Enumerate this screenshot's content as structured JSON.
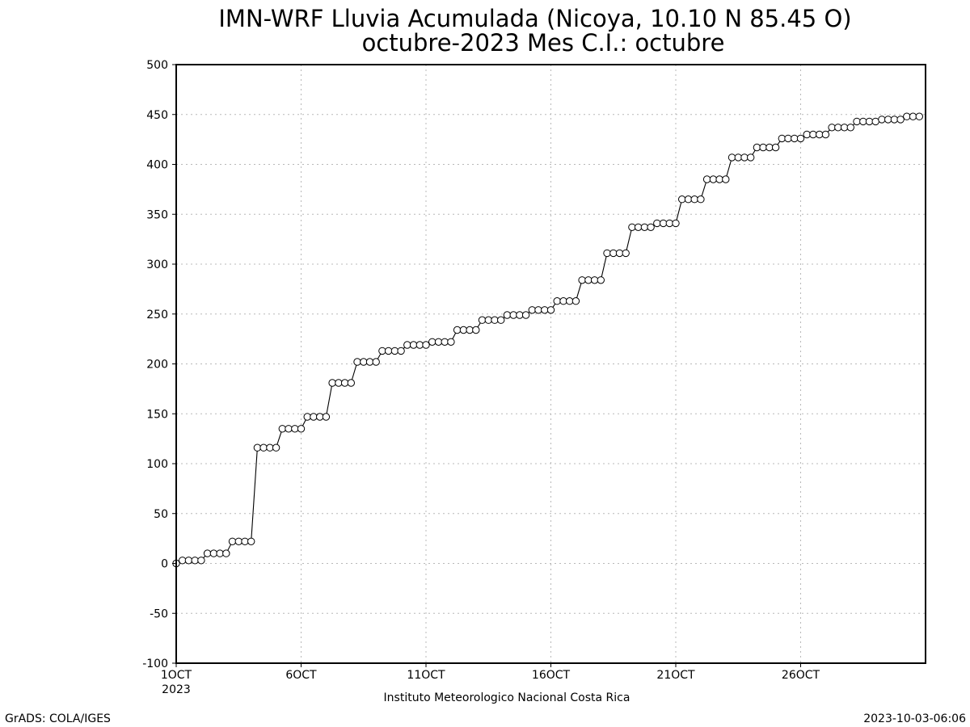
{
  "chart_data": {
    "type": "line",
    "title": "IMN-WRF  Lluvia Acumulada (Nicoya, 10.10  N 85.45  O)",
    "subtitle": "octubre-2023 Mes C.I.: octubre",
    "xlabel": "",
    "ylabel": "",
    "xlim": [
      1,
      31
    ],
    "ylim": [
      -100,
      500
    ],
    "x_ticks": [
      1,
      6,
      11,
      16,
      21,
      26
    ],
    "x_tick_labels": [
      "1OCT",
      "6OCT",
      "11OCT",
      "16OCT",
      "21OCT",
      "26OCT"
    ],
    "x_year_label": "2023",
    "y_ticks": [
      -100,
      -50,
      0,
      50,
      100,
      150,
      200,
      250,
      300,
      350,
      400,
      450,
      500
    ],
    "y_tick_labels": [
      "-100",
      "-50",
      "0",
      "50",
      "100",
      "150",
      "200",
      "250",
      "300",
      "350",
      "400",
      "450",
      "500"
    ],
    "grid": true,
    "series": [
      {
        "values": [
          0,
          3,
          3,
          3,
          3,
          10,
          10,
          10,
          10,
          22,
          22,
          22,
          22,
          116,
          116,
          116,
          116,
          135,
          135,
          135,
          135,
          147,
          147,
          147,
          147,
          181,
          181,
          181,
          181,
          202,
          202,
          202,
          202,
          213,
          213,
          213,
          213,
          219,
          219,
          219,
          219,
          222,
          222,
          222,
          222,
          234,
          234,
          234,
          234,
          244,
          244,
          244,
          244,
          249,
          249,
          249,
          249,
          254,
          254,
          254,
          254,
          263,
          263,
          263,
          263,
          284,
          284,
          284,
          284,
          311,
          311,
          311,
          311,
          337,
          337,
          337,
          337,
          341,
          341,
          341,
          341,
          365,
          365,
          365,
          365,
          385,
          385,
          385,
          385,
          407,
          407,
          407,
          407,
          417,
          417,
          417,
          417,
          426,
          426,
          426,
          426,
          430,
          430,
          430,
          430,
          437,
          437,
          437,
          437,
          443,
          443,
          443,
          443,
          445,
          445,
          445,
          445,
          448,
          448,
          448
        ]
      }
    ],
    "x_step_days": 0.25
  },
  "footer": {
    "credit": "Instituto Meteorologico Nacional Costa Rica",
    "software": "GrADS: COLA/IGES",
    "timestamp": "2023-10-03-06:06"
  }
}
